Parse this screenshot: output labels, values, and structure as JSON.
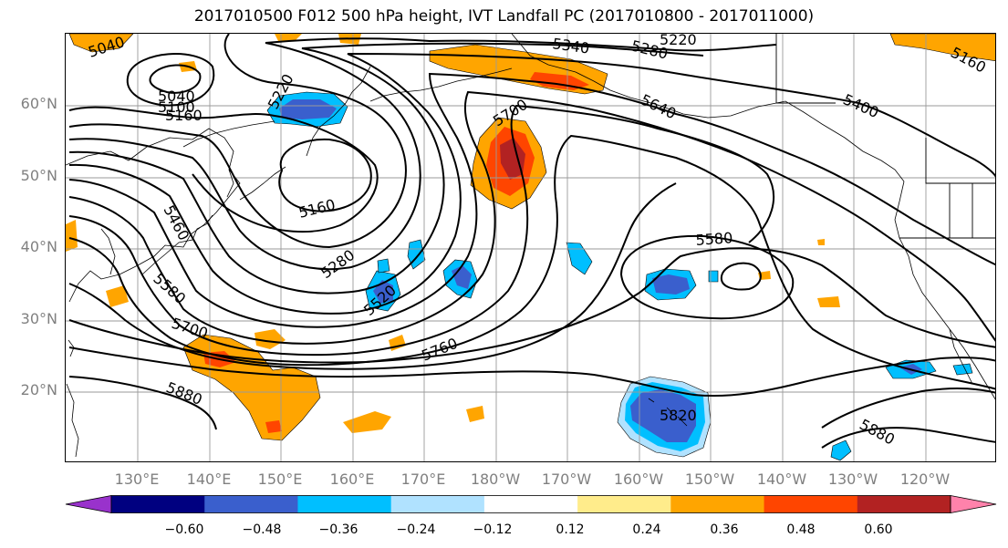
{
  "title": "2017010500 F012 500 hPa height, IVT Landfall PC (2017010800 - 2017011000)",
  "lat_labels": [
    "60°N",
    "50°N",
    "40°N",
    "30°N",
    "20°N"
  ],
  "lon_labels": [
    "130°E",
    "140°E",
    "150°E",
    "160°E",
    "170°E",
    "180°W",
    "170°W",
    "160°W",
    "150°W",
    "140°W",
    "130°W",
    "120°W"
  ],
  "contour_labels": [
    "5040",
    "5040",
    "5100",
    "5160",
    "5220",
    "5340",
    "5280",
    "5220",
    "5160",
    "5700",
    "5640",
    "5400",
    "5160",
    "5460",
    "5280",
    "5580",
    "5580",
    "5520",
    "5700",
    "5760",
    "5880",
    "5820",
    "5880"
  ],
  "colorbar": {
    "ticks": [
      "−0.60",
      "−0.48",
      "−0.36",
      "−0.24",
      "−0.12",
      "0.12",
      "0.24",
      "0.36",
      "0.48",
      "0.60"
    ],
    "colors": [
      "#9932cc",
      "#000080",
      "#3a5fcd",
      "#00bfff",
      "#b0e2ff",
      "#ffffff",
      "#ffec8b",
      "#ffa500",
      "#ff4500",
      "#b22222",
      "#ff82ab"
    ]
  }
}
